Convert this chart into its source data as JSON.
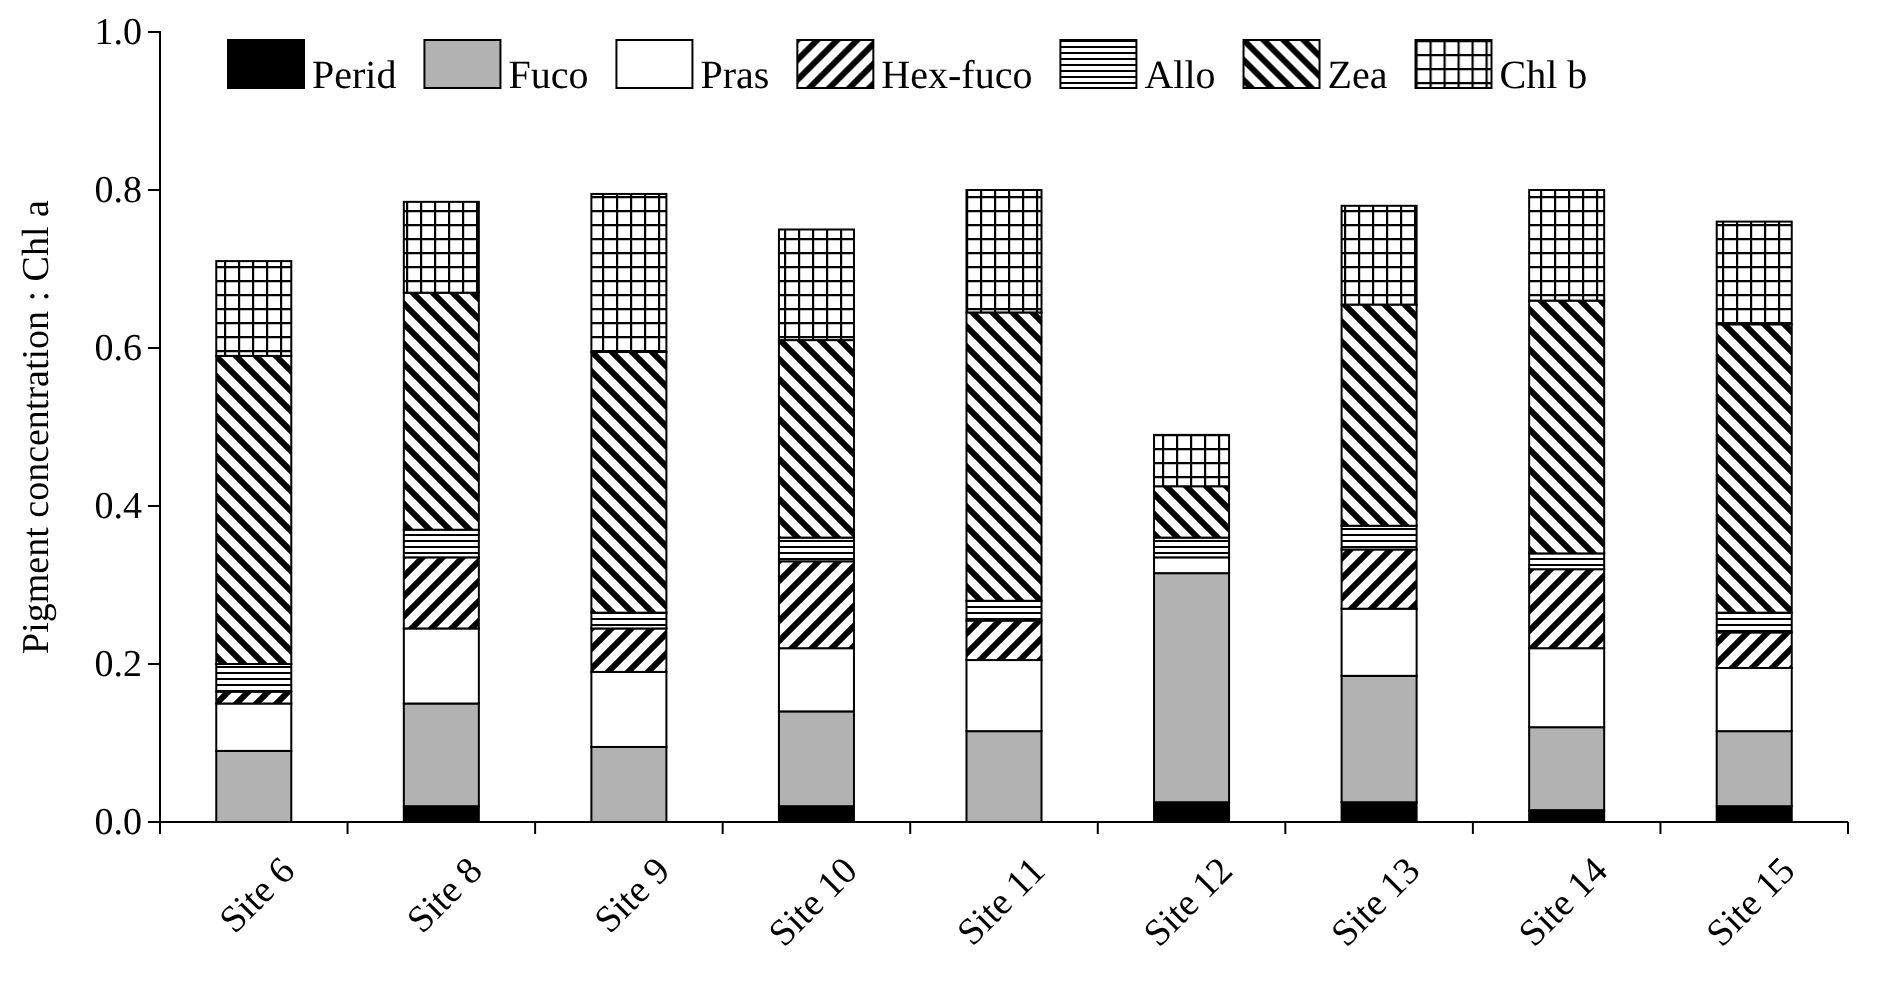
{
  "chart_data": {
    "type": "bar",
    "stacked": true,
    "ylabel": "Pigment concentration : Chl a",
    "categories": [
      "Site 6",
      "Site 8",
      "Site 9",
      "Site 10",
      "Site 11",
      "Site 12",
      "Site 13",
      "Site 14",
      "Site 15"
    ],
    "series": [
      {
        "name": "Perid",
        "color": "#000000",
        "values": [
          0,
          0.02,
          0,
          0.02,
          0,
          0.025,
          0.025,
          0.015,
          0.02
        ]
      },
      {
        "name": "Fuco",
        "color": "#b2b2b2",
        "values": [
          0.09,
          0.13,
          0.095,
          0.12,
          0.115,
          0.29,
          0.16,
          0.105,
          0.095
        ]
      },
      {
        "name": "Pras",
        "color": "#ffffff",
        "values": [
          0.06,
          0.095,
          0.095,
          0.08,
          0.09,
          0.02,
          0.085,
          0.1,
          0.08
        ]
      },
      {
        "name": "Hex-fuco",
        "color": "#000000",
        "values": [
          0.015,
          0.09,
          0.055,
          0.11,
          0.05,
          0,
          0.075,
          0.1,
          0.045
        ]
      },
      {
        "name": "Allo",
        "color": "#000000",
        "values": [
          0.035,
          0.035,
          0.02,
          0.03,
          0.025,
          0.025,
          0.03,
          0.02,
          0.025
        ]
      },
      {
        "name": "Zea",
        "color": "#000000",
        "values": [
          0.39,
          0.3,
          0.33,
          0.25,
          0.365,
          0.065,
          0.28,
          0.32,
          0.365
        ]
      },
      {
        "name": "Chl b",
        "color": "#000000",
        "values": [
          0.12,
          0.115,
          0.2,
          0.14,
          0.155,
          0.065,
          0.125,
          0.14,
          0.13
        ]
      }
    ],
    "ylim": [
      0,
      1
    ],
    "yticks": [
      {
        "value": 0,
        "label": "0.0"
      },
      {
        "value": 0.2,
        "label": "0.2"
      },
      {
        "value": 0.4,
        "label": "0.4"
      },
      {
        "value": 0.6,
        "label": "0.6"
      },
      {
        "value": 0.8,
        "label": "0.8"
      },
      {
        "value": 1,
        "label": "1.0"
      }
    ],
    "grid": false,
    "legend": "top"
  }
}
